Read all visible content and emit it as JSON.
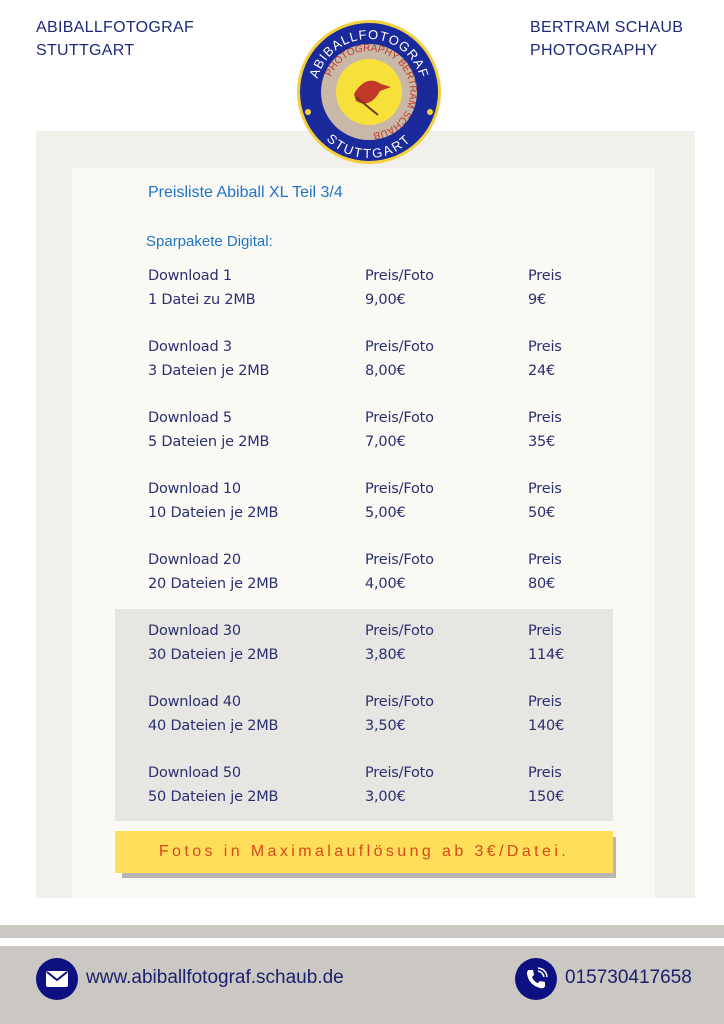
{
  "header": {
    "left": [
      "ABIBALLFOTOGRAF",
      "STUTTGART"
    ],
    "right": [
      "BERTRAM SCHAUB",
      "PHOTOGRAPHY"
    ]
  },
  "logo": {
    "outer_top": "ABIBALLFOTOGRAF",
    "outer_bottom": "STUTTGART",
    "inner": "PHOTOGRAPHY BERTRAM SCHAUB",
    "center": "KOOKABURRA",
    "colors": {
      "ring": "#1a2a9a",
      "gold": "#f4d03f",
      "inner_ring": "#c9b8a8"
    }
  },
  "title": "Preisliste Abiball XL Teil 3/4",
  "subtitle": "Sparpakete Digital:",
  "rows": [
    {
      "name": "Download 1",
      "desc": "1 Datei zu 2MB",
      "unit_label": "Preis/Foto",
      "unit": "9,00€",
      "total_label": "Preis",
      "total": "9€"
    },
    {
      "name": "Download 3",
      "desc": "3 Dateien je 2MB",
      "unit_label": "Preis/Foto",
      "unit": "8,00€",
      "total_label": "Preis",
      "total": "24€"
    },
    {
      "name": "Download 5",
      "desc": "5 Dateien je 2MB",
      "unit_label": "Preis/Foto",
      "unit": "7,00€",
      "total_label": "Preis",
      "total": "35€"
    },
    {
      "name": "Download 10",
      "desc": "10 Dateien je 2MB",
      "unit_label": "Preis/Foto",
      "unit": "5,00€",
      "total_label": "Preis",
      "total": "50€"
    },
    {
      "name": "Download 20",
      "desc": "20 Dateien je 2MB",
      "unit_label": "Preis/Foto",
      "unit": "4,00€",
      "total_label": "Preis",
      "total": "80€"
    },
    {
      "name": "Download 30",
      "desc": "30 Dateien je 2MB",
      "unit_label": "Preis/Foto",
      "unit": "3,80€",
      "total_label": "Preis",
      "total": "114€"
    },
    {
      "name": "Download 40",
      "desc": "40 Dateien je 2MB",
      "unit_label": "Preis/Foto",
      "unit": "3,50€",
      "total_label": "Preis",
      "total": "140€"
    },
    {
      "name": "Download 50",
      "desc": "50 Dateien je 2MB",
      "unit_label": "Preis/Foto",
      "unit": "3,00€",
      "total_label": "Preis",
      "total": "150€"
    }
  ],
  "banner": "Fotos in Maximalauflösung ab 3€/Datei.",
  "footer": {
    "website": "www.abiballfotograf.schaub.de",
    "phone": "015730417658",
    "icons": [
      "mail-icon",
      "phone-icon"
    ]
  }
}
